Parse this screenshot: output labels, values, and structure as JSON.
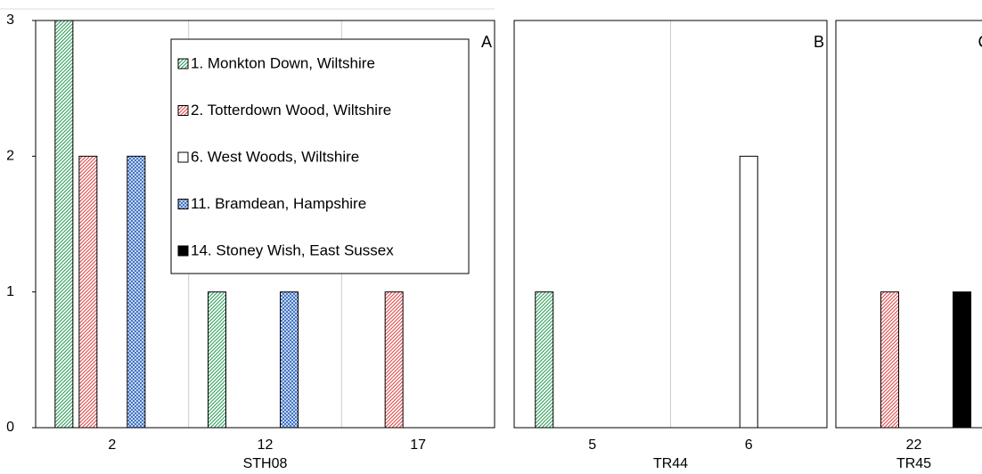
{
  "chart_data": {
    "type": "bar",
    "panels": [
      {
        "label": "A",
        "xlabel": "STH08",
        "categories": [
          "2",
          "12",
          "17"
        ]
      },
      {
        "label": "B",
        "xlabel": "TR44",
        "categories": [
          "5",
          "6"
        ]
      },
      {
        "label": "C",
        "xlabel": "TR45",
        "categories": [
          "22"
        ]
      }
    ],
    "series": [
      {
        "name": "1. Monkton Down, Wiltshire",
        "color": "#2e9e5b",
        "pattern": "hatch",
        "values": [
          3,
          1,
          0,
          1,
          0,
          0
        ]
      },
      {
        "name": "2. Totterdown Wood, Wiltshire",
        "color": "#e04848",
        "pattern": "hatch",
        "values": [
          2,
          0,
          1,
          0,
          0,
          1
        ]
      },
      {
        "name": "6. West Woods, Wiltshire",
        "color": "#ffffff",
        "pattern": "solid",
        "values": [
          0,
          0,
          0,
          0,
          2,
          0
        ]
      },
      {
        "name": "11. Bramdean, Hampshire",
        "color": "#3a6fc4",
        "pattern": "cross",
        "values": [
          2,
          1,
          0,
          0,
          0,
          0
        ]
      },
      {
        "name": "14. Stoney Wish, East Sussex",
        "color": "#000000",
        "pattern": "solid",
        "values": [
          0,
          0,
          0,
          0,
          0,
          1
        ]
      }
    ],
    "ylim": [
      0,
      3
    ],
    "yticks": [
      0,
      1,
      2,
      3
    ],
    "grid": true
  }
}
